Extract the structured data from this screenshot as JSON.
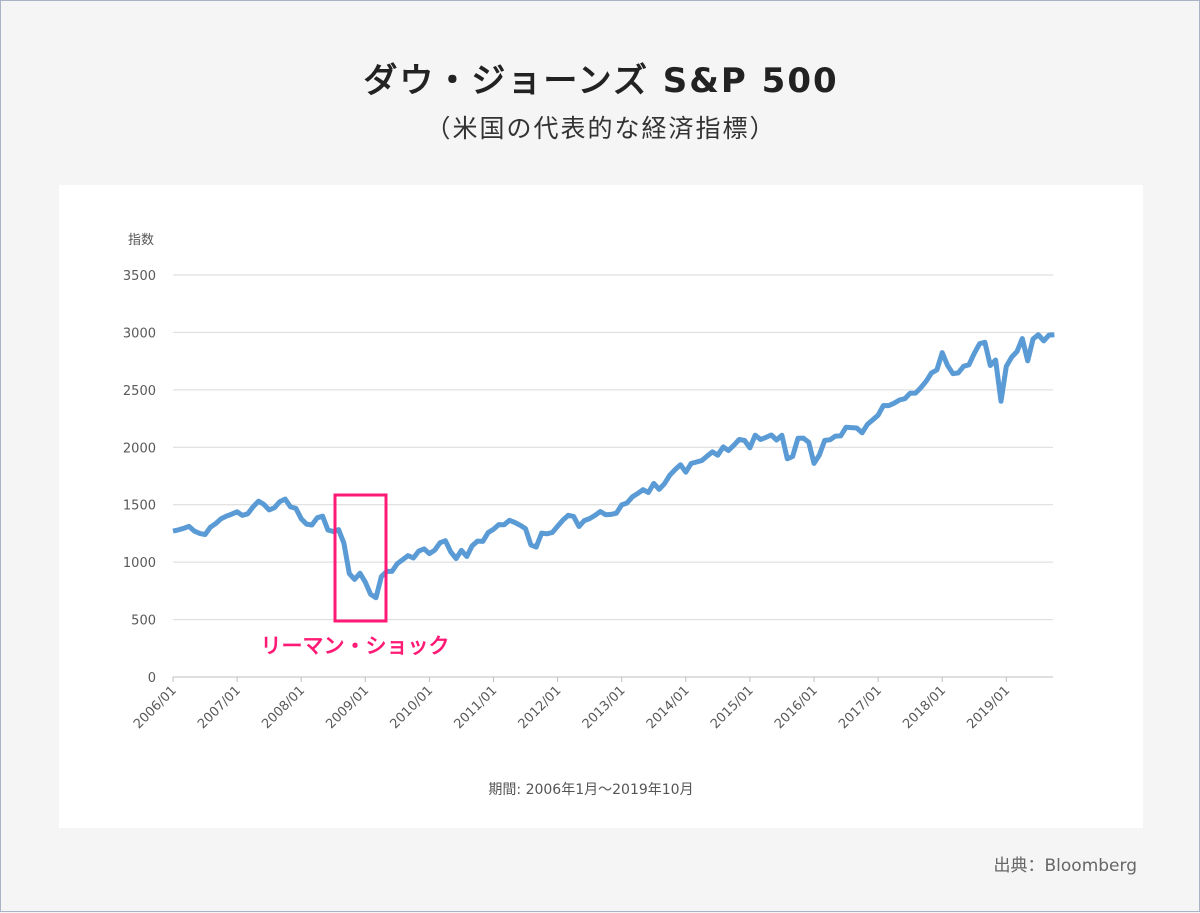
{
  "header": {
    "title": "ダウ・ジョーンズ S&P 500",
    "subtitle": "（米国の代表的な経済指標）"
  },
  "source": "出典：Bloomberg",
  "chart_data": {
    "type": "line",
    "title": "ダウ・ジョーンズ S&P 500",
    "ylabel": "指数",
    "xlabel": "期間: 2006年1月〜2019年10月",
    "ylim": [
      0,
      3500
    ],
    "yticks": [
      "0",
      "500",
      "1000",
      "1500",
      "2000",
      "2500",
      "3000",
      "3500"
    ],
    "xticks": [
      "2006/01",
      "2007/01",
      "2008/01",
      "2009/01",
      "2010/01",
      "2011/01",
      "2012/01",
      "2013/01",
      "2014/01",
      "2015/01",
      "2016/01",
      "2017/01",
      "2018/01",
      "2019/01"
    ],
    "grid": true,
    "series": [
      {
        "name": "S&P 500",
        "color": "#5b9bd5",
        "start": "2006/01",
        "frequency": "monthly",
        "values": [
          1270,
          1281,
          1295,
          1311,
          1270,
          1250,
          1240,
          1304,
          1336,
          1378,
          1401,
          1418,
          1438,
          1407,
          1421,
          1482,
          1531,
          1503,
          1455,
          1474,
          1527,
          1549,
          1481,
          1468,
          1378,
          1331,
          1323,
          1386,
          1400,
          1280,
          1267,
          1283,
          1165,
          900,
          850,
          903,
          826,
          720,
          690,
          873,
          919,
          919,
          987,
          1021,
          1057,
          1036,
          1096,
          1115,
          1074,
          1104,
          1169,
          1187,
          1089,
          1031,
          1102,
          1049,
          1141,
          1183,
          1181,
          1258,
          1286,
          1327,
          1326,
          1364,
          1345,
          1321,
          1292,
          1150,
          1131,
          1253,
          1247,
          1258,
          1312,
          1366,
          1408,
          1398,
          1310,
          1362,
          1379,
          1407,
          1441,
          1412,
          1416,
          1426,
          1498,
          1515,
          1569,
          1598,
          1631,
          1606,
          1686,
          1633,
          1682,
          1757,
          1806,
          1848,
          1783,
          1859,
          1872,
          1884,
          1924,
          1960,
          1931,
          2003,
          1972,
          2018,
          2068,
          2059,
          1995,
          2105,
          2068,
          2086,
          2107,
          2063,
          2104,
          1900,
          1920,
          2079,
          2080,
          2044,
          1860,
          1932,
          2060,
          2065,
          2097,
          2099,
          2174,
          2171,
          2168,
          2126,
          2199,
          2239,
          2279,
          2364,
          2363,
          2384,
          2412,
          2423,
          2470,
          2472,
          2519,
          2575,
          2648,
          2674,
          2824,
          2714,
          2641,
          2648,
          2705,
          2718,
          2816,
          2902,
          2914,
          2712,
          2760,
          2400,
          2704,
          2784,
          2834,
          2946,
          2752,
          2942,
          2980,
          2926,
          2977,
          2980
        ]
      }
    ],
    "annotations": [
      {
        "text": "リーマン・ショック",
        "color": "#ff1a75",
        "range": [
          "2008/09",
          "2009/05"
        ]
      }
    ]
  }
}
